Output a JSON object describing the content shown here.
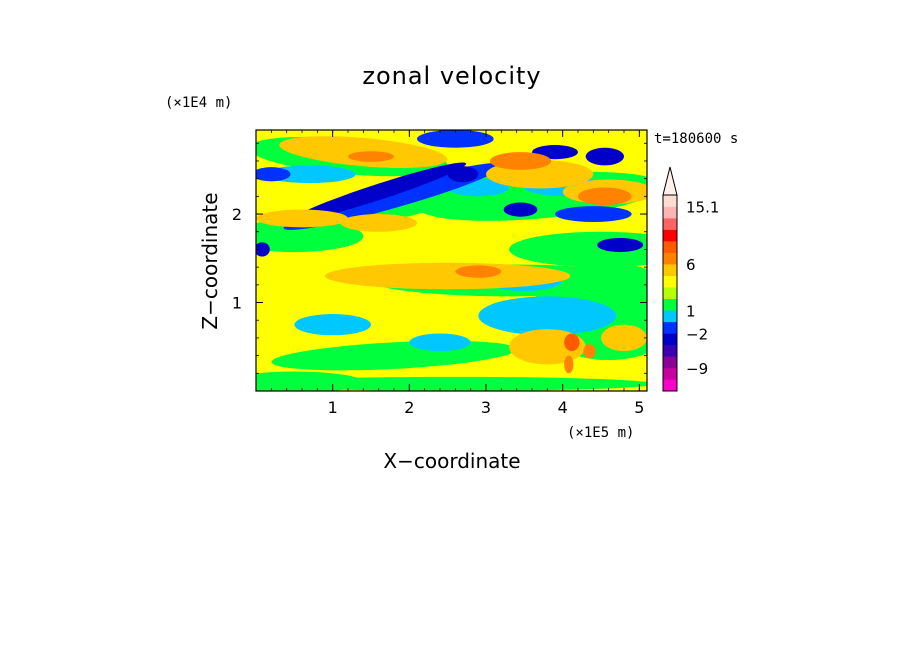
{
  "chart_data": {
    "type": "heatmap",
    "title": "zonal velocity",
    "xlabel": "X−coordinate",
    "ylabel": "Z−coordinate",
    "x_unit": "(×1E5 m)",
    "y_unit": "(×1E4 m)",
    "time_label": "t=180600 s",
    "xlim": [
      0,
      5.1
    ],
    "ylim": [
      0,
      2.95
    ],
    "x_ticks": [
      1,
      2,
      3,
      4,
      5
    ],
    "y_ticks": [
      1,
      2
    ],
    "colorbar": {
      "labeled_levels": [
        "15.1",
        "6",
        "1",
        "−2",
        "−9"
      ],
      "bands": [
        {
          "color": "#ff00c8"
        },
        {
          "color": "#c800a0"
        },
        {
          "color": "#8c0096"
        },
        {
          "color": "#3c00b4"
        },
        {
          "color": "#0000c8"
        },
        {
          "color": "#0032ff"
        },
        {
          "color": "#00c8ff"
        },
        {
          "color": "#00ff3c"
        },
        {
          "color": "#b4ff00"
        },
        {
          "color": "#ffff00"
        },
        {
          "color": "#ffc800"
        },
        {
          "color": "#ff8200"
        },
        {
          "color": "#ff5a00"
        },
        {
          "color": "#ff0000"
        },
        {
          "color": "#ff6464"
        },
        {
          "color": "#ffb4b4"
        },
        {
          "color": "#ffdcd2"
        }
      ],
      "extend_top": true
    },
    "field_palette": {
      "strong_neg": "#0000c8",
      "neg": "#0032ff",
      "weak_neg": "#00c8ff",
      "near_zero": "#00ff3c",
      "weak_pos": "#ffff00",
      "pos": "#ffc800",
      "strong_pos": "#ff8200",
      "very_strong_pos": "#ff5a00"
    }
  }
}
